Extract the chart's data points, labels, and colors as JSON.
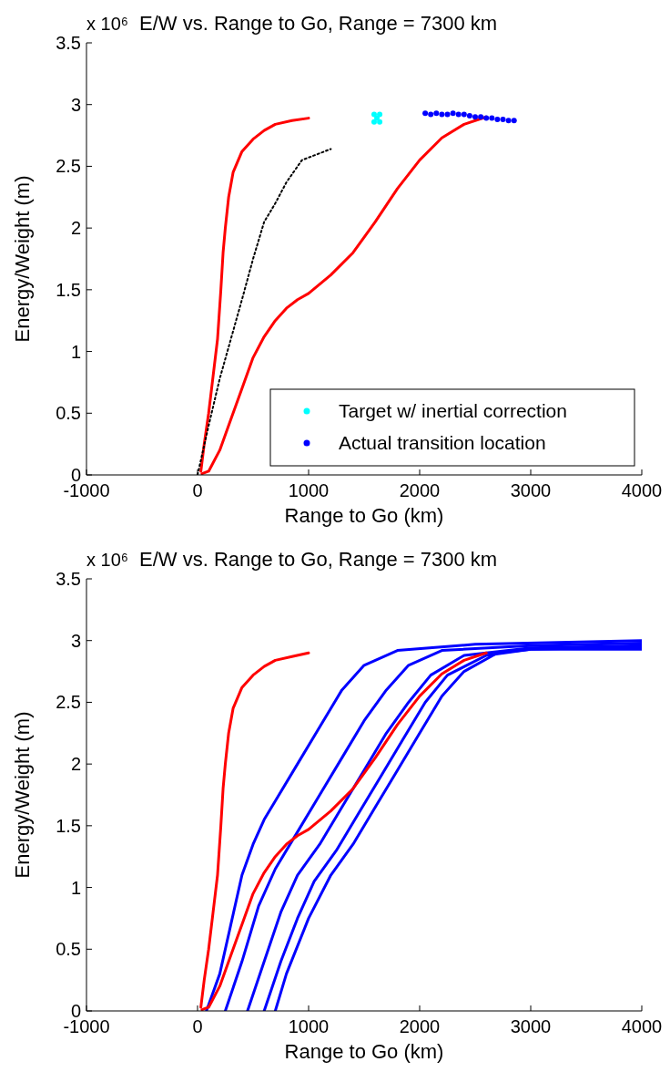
{
  "chart_data": [
    {
      "type": "line",
      "title": "E/W vs. Range to Go, Range = 7300 km",
      "xlabel": "Range to Go (km)",
      "ylabel": "Energy/Weight (m)",
      "annotations": [
        "x 10⁶"
      ],
      "xlim": [
        -1000,
        4000
      ],
      "ylim": [
        0,
        3.5
      ],
      "xticks": [
        -1000,
        0,
        1000,
        2000,
        3000,
        4000
      ],
      "yticks": [
        0,
        0.5,
        1,
        1.5,
        2,
        2.5,
        3,
        3.5
      ],
      "grid": false,
      "legend": "bottom right",
      "series": [
        {
          "color": "#ff0000",
          "x": [
            30,
            60,
            100,
            140,
            180,
            210,
            230,
            250,
            280,
            320,
            400,
            500,
            600,
            700,
            850,
            1000
          ],
          "values": [
            0.03,
            0.25,
            0.5,
            0.8,
            1.1,
            1.5,
            1.8,
            2.0,
            2.25,
            2.45,
            2.62,
            2.72,
            2.79,
            2.84,
            2.87,
            2.89
          ]
        },
        {
          "color": "#ff0000",
          "x": [
            40,
            100,
            200,
            300,
            400,
            500,
            600,
            700,
            800,
            900,
            1000,
            1200,
            1400,
            1600,
            1800,
            2000,
            2200,
            2400,
            2600
          ],
          "values": [
            0.01,
            0.03,
            0.2,
            0.45,
            0.7,
            0.95,
            1.12,
            1.25,
            1.35,
            1.42,
            1.47,
            1.62,
            1.8,
            2.05,
            2.32,
            2.55,
            2.73,
            2.84,
            2.9
          ]
        },
        {
          "color": "#000000",
          "line_style": "dotted",
          "x": [
            0,
            100,
            200,
            300,
            400,
            500,
            600,
            700,
            800,
            940,
            1200
          ],
          "values": [
            0.0,
            0.4,
            0.78,
            1.1,
            1.42,
            1.75,
            2.05,
            2.2,
            2.37,
            2.55,
            2.64
          ]
        },
        {
          "type": "scatter",
          "name": "Target w/ inertial correction",
          "color": "#00ffff",
          "x": [
            1590,
            1640,
            1590,
            1640,
            1615
          ],
          "values": [
            2.92,
            2.92,
            2.86,
            2.86,
            2.89
          ]
        },
        {
          "type": "scatter",
          "name": "Actual transition location",
          "color": "#0000ff",
          "x": [
            2050,
            2100,
            2150,
            2200,
            2250,
            2300,
            2350,
            2400,
            2450,
            2500,
            2550,
            2600,
            2650,
            2700,
            2750,
            2800,
            2850
          ],
          "values": [
            2.93,
            2.92,
            2.93,
            2.92,
            2.92,
            2.93,
            2.92,
            2.92,
            2.91,
            2.9,
            2.9,
            2.89,
            2.89,
            2.88,
            2.88,
            2.87,
            2.87
          ]
        }
      ]
    },
    {
      "type": "line",
      "title": "E/W vs. Range to Go, Range = 7300 km",
      "xlabel": "Range to Go (km)",
      "ylabel": "Energy/Weight (m)",
      "annotations": [
        "x 10⁶"
      ],
      "xlim": [
        -1000,
        4000
      ],
      "ylim": [
        0,
        3.5
      ],
      "xticks": [
        -1000,
        0,
        1000,
        2000,
        3000,
        4000
      ],
      "yticks": [
        0,
        0.5,
        1,
        1.5,
        2,
        2.5,
        3,
        3.5
      ],
      "grid": false,
      "series": [
        {
          "color": "#0000ff",
          "x": [
            80,
            200,
            300,
            400,
            500,
            600,
            700,
            900,
            1100,
            1300,
            1500,
            1800,
            2500,
            4000
          ],
          "values": [
            0,
            0.3,
            0.7,
            1.1,
            1.35,
            1.55,
            1.7,
            2.0,
            2.3,
            2.6,
            2.8,
            2.92,
            2.97,
            3.0
          ]
        },
        {
          "color": "#0000ff",
          "x": [
            250,
            400,
            550,
            700,
            900,
            1100,
            1300,
            1500,
            1700,
            1900,
            2200,
            3000,
            4000
          ],
          "values": [
            0,
            0.4,
            0.85,
            1.15,
            1.45,
            1.75,
            2.05,
            2.35,
            2.6,
            2.8,
            2.92,
            2.96,
            2.98
          ]
        },
        {
          "color": "#0000ff",
          "x": [
            450,
            600,
            750,
            900,
            1100,
            1300,
            1500,
            1700,
            1900,
            2100,
            2400,
            3000,
            4000
          ],
          "values": [
            0,
            0.4,
            0.8,
            1.1,
            1.35,
            1.65,
            1.95,
            2.25,
            2.5,
            2.72,
            2.88,
            2.94,
            2.96
          ]
        },
        {
          "color": "#0000ff",
          "x": [
            600,
            750,
            900,
            1050,
            1250,
            1450,
            1650,
            1850,
            2050,
            2250,
            2600,
            3000,
            4000
          ],
          "values": [
            0,
            0.4,
            0.75,
            1.05,
            1.3,
            1.6,
            1.9,
            2.2,
            2.5,
            2.72,
            2.88,
            2.93,
            2.95
          ]
        },
        {
          "color": "#0000ff",
          "x": [
            700,
            800,
            1000,
            1200,
            1400,
            1600,
            1800,
            2000,
            2200,
            2400,
            2700,
            3000,
            4000
          ],
          "values": [
            0,
            0.3,
            0.75,
            1.1,
            1.35,
            1.65,
            1.95,
            2.25,
            2.55,
            2.75,
            2.9,
            2.93,
            2.93
          ]
        },
        {
          "color": "#ff0000",
          "x": [
            30,
            60,
            100,
            140,
            180,
            210,
            230,
            250,
            280,
            320,
            400,
            500,
            600,
            700,
            850,
            1000
          ],
          "values": [
            0.03,
            0.25,
            0.5,
            0.8,
            1.1,
            1.5,
            1.8,
            2.0,
            2.25,
            2.45,
            2.62,
            2.72,
            2.79,
            2.84,
            2.87,
            2.9
          ]
        },
        {
          "color": "#ff0000",
          "x": [
            40,
            100,
            200,
            300,
            400,
            500,
            600,
            700,
            800,
            900,
            1000,
            1200,
            1400,
            1600,
            1800,
            2000,
            2200,
            2400,
            2600
          ],
          "values": [
            0.01,
            0.03,
            0.2,
            0.45,
            0.7,
            0.95,
            1.12,
            1.25,
            1.35,
            1.42,
            1.47,
            1.62,
            1.8,
            2.05,
            2.32,
            2.55,
            2.73,
            2.84,
            2.9
          ]
        }
      ]
    }
  ]
}
